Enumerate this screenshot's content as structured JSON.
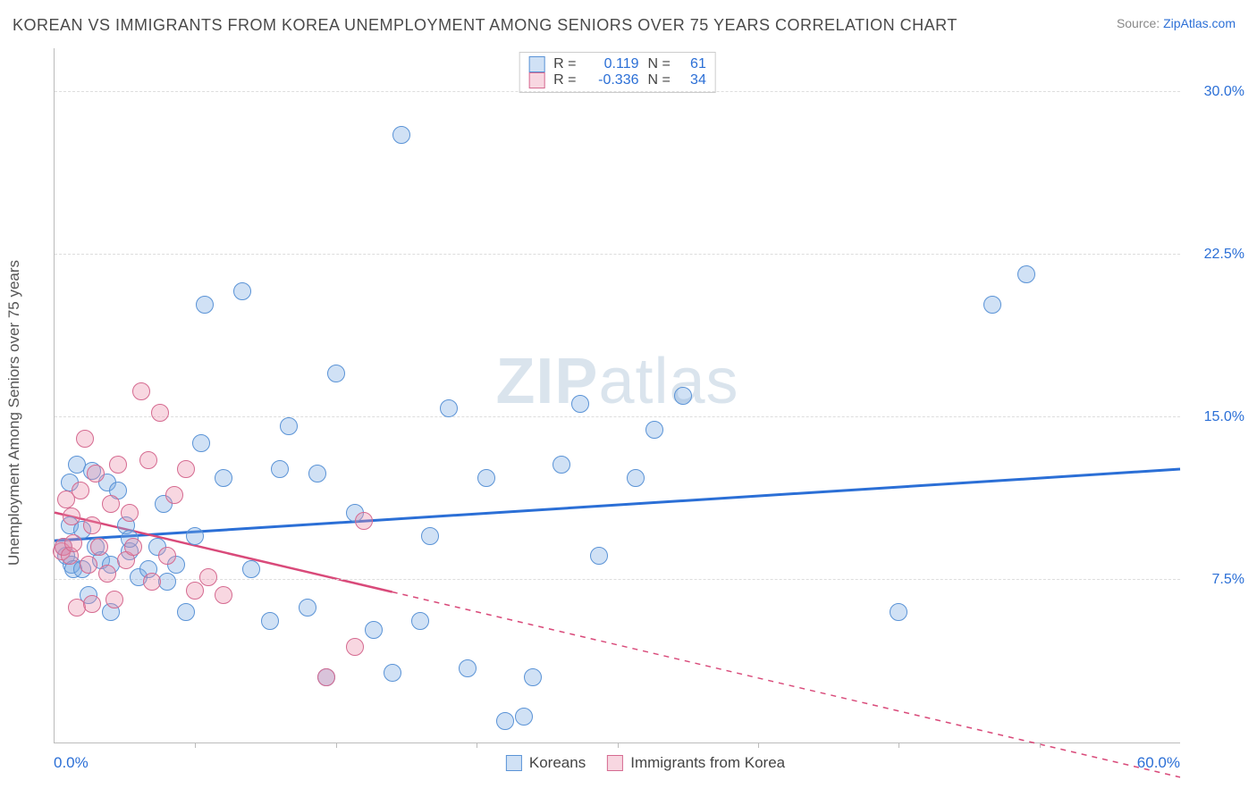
{
  "title": "KOREAN VS IMMIGRANTS FROM KOREA UNEMPLOYMENT AMONG SENIORS OVER 75 YEARS CORRELATION CHART",
  "source_prefix": "Source: ",
  "source_link": "ZipAtlas.com",
  "ylabel": "Unemployment Among Seniors over 75 years",
  "watermark": {
    "bold": "ZIP",
    "light": "atlas"
  },
  "chart": {
    "type": "scatter",
    "xlim": [
      0,
      60
    ],
    "ylim": [
      0,
      32
    ],
    "x_ticks": [
      7.5,
      15,
      22.5,
      30,
      37.5,
      45,
      52.5
    ],
    "x_min_label": "0.0%",
    "x_max_label": "60.0%",
    "y_ticks": [
      {
        "v": 7.5,
        "label": "7.5%"
      },
      {
        "v": 15.0,
        "label": "15.0%"
      },
      {
        "v": 22.5,
        "label": "22.5%"
      },
      {
        "v": 30.0,
        "label": "30.0%"
      }
    ],
    "grid_color": "#dddddd",
    "background_color": "#ffffff",
    "marker_radius": 10,
    "marker_stroke_width": 1.2,
    "series": [
      {
        "id": "koreans",
        "label": "Koreans",
        "fill": "rgba(121,168,225,0.35)",
        "stroke": "#5a93d6",
        "line_color": "#2b6fd6",
        "R": "0.119",
        "N": "61",
        "regression": {
          "x1": 0,
          "y1": 9.3,
          "x2": 60,
          "y2": 12.6,
          "solid_until_x": 60
        },
        "points": [
          [
            0.5,
            9.0
          ],
          [
            0.6,
            8.6
          ],
          [
            0.8,
            10.0
          ],
          [
            0.8,
            12.0
          ],
          [
            0.9,
            8.2
          ],
          [
            1.0,
            8.0
          ],
          [
            1.2,
            12.8
          ],
          [
            1.5,
            9.8
          ],
          [
            1.5,
            8.0
          ],
          [
            1.8,
            6.8
          ],
          [
            2.0,
            12.5
          ],
          [
            2.2,
            9.0
          ],
          [
            2.5,
            8.4
          ],
          [
            2.8,
            12.0
          ],
          [
            3.0,
            8.2
          ],
          [
            3.0,
            6.0
          ],
          [
            3.4,
            11.6
          ],
          [
            3.8,
            10.0
          ],
          [
            4.0,
            8.8
          ],
          [
            4.0,
            9.4
          ],
          [
            4.5,
            7.6
          ],
          [
            5.0,
            8.0
          ],
          [
            5.5,
            9.0
          ],
          [
            5.8,
            11.0
          ],
          [
            6.0,
            7.4
          ],
          [
            6.5,
            8.2
          ],
          [
            7.0,
            6.0
          ],
          [
            7.5,
            9.5
          ],
          [
            7.8,
            13.8
          ],
          [
            8.0,
            20.2
          ],
          [
            9.0,
            12.2
          ],
          [
            10.0,
            20.8
          ],
          [
            10.5,
            8.0
          ],
          [
            11.5,
            5.6
          ],
          [
            12.0,
            12.6
          ],
          [
            12.5,
            14.6
          ],
          [
            13.5,
            6.2
          ],
          [
            14.0,
            12.4
          ],
          [
            14.5,
            3.0
          ],
          [
            15.0,
            17.0
          ],
          [
            16.0,
            10.6
          ],
          [
            17.0,
            5.2
          ],
          [
            18.0,
            3.2
          ],
          [
            18.5,
            28.0
          ],
          [
            19.5,
            5.6
          ],
          [
            20.0,
            9.5
          ],
          [
            21.0,
            15.4
          ],
          [
            22.0,
            3.4
          ],
          [
            23.0,
            12.2
          ],
          [
            24.0,
            1.0
          ],
          [
            25.0,
            1.2
          ],
          [
            25.5,
            3.0
          ],
          [
            27.0,
            12.8
          ],
          [
            28.0,
            15.6
          ],
          [
            29.0,
            8.6
          ],
          [
            31.0,
            12.2
          ],
          [
            32.0,
            14.4
          ],
          [
            33.5,
            16.0
          ],
          [
            45.0,
            6.0
          ],
          [
            50.0,
            20.2
          ],
          [
            51.8,
            21.6
          ]
        ]
      },
      {
        "id": "immigrants",
        "label": "Immigrants from Korea",
        "fill": "rgba(236,140,170,0.35)",
        "stroke": "#d56a90",
        "line_color": "#d94a7a",
        "R": "-0.336",
        "N": "34",
        "regression": {
          "x1": 0,
          "y1": 10.6,
          "x2": 60,
          "y2": -1.6,
          "solid_until_x": 18
        },
        "points": [
          [
            0.4,
            8.8
          ],
          [
            0.5,
            9.0
          ],
          [
            0.6,
            11.2
          ],
          [
            0.8,
            8.6
          ],
          [
            0.9,
            10.4
          ],
          [
            1.0,
            9.2
          ],
          [
            1.2,
            6.2
          ],
          [
            1.4,
            11.6
          ],
          [
            1.6,
            14.0
          ],
          [
            1.8,
            8.2
          ],
          [
            2.0,
            10.0
          ],
          [
            2.0,
            6.4
          ],
          [
            2.2,
            12.4
          ],
          [
            2.4,
            9.0
          ],
          [
            2.8,
            7.8
          ],
          [
            3.0,
            11.0
          ],
          [
            3.2,
            6.6
          ],
          [
            3.4,
            12.8
          ],
          [
            3.8,
            8.4
          ],
          [
            4.0,
            10.6
          ],
          [
            4.2,
            9.0
          ],
          [
            4.6,
            16.2
          ],
          [
            5.0,
            13.0
          ],
          [
            5.2,
            7.4
          ],
          [
            5.6,
            15.2
          ],
          [
            6.0,
            8.6
          ],
          [
            6.4,
            11.4
          ],
          [
            7.0,
            12.6
          ],
          [
            7.5,
            7.0
          ],
          [
            8.2,
            7.6
          ],
          [
            9.0,
            6.8
          ],
          [
            14.5,
            3.0
          ],
          [
            16.0,
            4.4
          ],
          [
            16.5,
            10.2
          ]
        ]
      }
    ],
    "stat_legend": {
      "rlabel": "R =",
      "nlabel": "N ="
    },
    "bottom_legend": [
      {
        "series": 0
      },
      {
        "series": 1
      }
    ]
  }
}
